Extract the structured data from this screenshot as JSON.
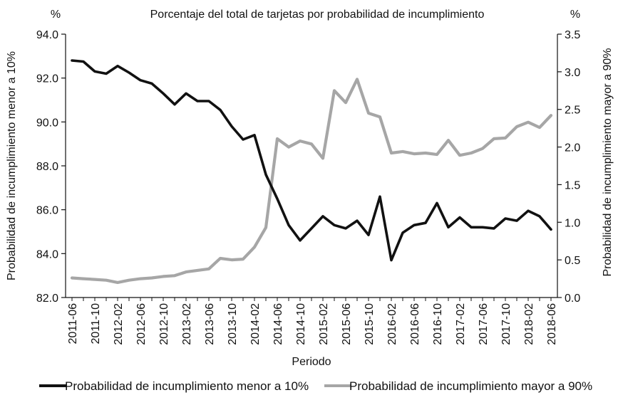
{
  "chart_data": {
    "type": "line",
    "title": "Porcentaje del total de tarjetas por probabilidad de incumplimiento",
    "xlabel": "Periodo",
    "ylabel_left": "Probabilidad de incumplimiento menor a 10%",
    "ylabel_right": "Probabilidad de incumplimiento mayor a 90%",
    "unit_left": "%",
    "unit_right": "%",
    "ylim_left": [
      82.0,
      94.0
    ],
    "ylim_right": [
      0.0,
      3.5
    ],
    "yticks_left": [
      "82.0",
      "84.0",
      "86.0",
      "88.0",
      "90.0",
      "92.0",
      "94.0"
    ],
    "yticks_right": [
      "0.0",
      "0.5",
      "1.0",
      "1.5",
      "2.0",
      "2.5",
      "3.0",
      "3.5"
    ],
    "x": [
      "2011-06",
      "2011-08",
      "2011-10",
      "2011-12",
      "2012-02",
      "2012-04",
      "2012-06",
      "2012-08",
      "2012-10",
      "2012-12",
      "2013-02",
      "2013-04",
      "2013-06",
      "2013-08",
      "2013-10",
      "2013-12",
      "2014-02",
      "2014-04",
      "2014-06",
      "2014-08",
      "2014-10",
      "2014-12",
      "2015-02",
      "2015-04",
      "2015-06",
      "2015-08",
      "2015-10",
      "2015-12",
      "2016-02",
      "2016-04",
      "2016-06",
      "2016-08",
      "2016-10",
      "2016-12",
      "2017-02",
      "2017-04",
      "2017-06",
      "2017-08",
      "2017-10",
      "2017-12",
      "2018-02",
      "2018-04",
      "2018-06"
    ],
    "xtick_labels": [
      "2011-06",
      "2011-10",
      "2012-02",
      "2012-06",
      "2012-10",
      "2013-02",
      "2013-06",
      "2013-10",
      "2014-02",
      "2014-06",
      "2014-10",
      "2015-02",
      "2015-06",
      "2015-10",
      "2016-02",
      "2016-06",
      "2016-10",
      "2017-02",
      "2017-06",
      "2017-10",
      "2018-02",
      "2018-06"
    ],
    "series": [
      {
        "name": "Probabilidad de incumplimiento menor a 10%",
        "axis": "left",
        "color": "#111111",
        "values": [
          92.8,
          92.75,
          92.3,
          92.2,
          92.55,
          92.25,
          91.9,
          91.75,
          91.3,
          90.8,
          91.3,
          90.95,
          90.95,
          90.55,
          89.8,
          89.2,
          89.4,
          87.6,
          86.5,
          85.3,
          84.6,
          85.15,
          85.7,
          85.3,
          85.15,
          85.5,
          84.85,
          86.6,
          83.7,
          84.95,
          85.3,
          85.4,
          86.3,
          85.2,
          85.65,
          85.2,
          85.2,
          85.15,
          85.6,
          85.5,
          85.95,
          85.7,
          85.1
        ]
      },
      {
        "name": "Probabilidad de incumplimiento mayor a 90%",
        "axis": "right",
        "color": "#a6a6a6",
        "values": [
          0.26,
          0.25,
          0.24,
          0.23,
          0.2,
          0.23,
          0.25,
          0.26,
          0.28,
          0.29,
          0.34,
          0.36,
          0.38,
          0.52,
          0.5,
          0.51,
          0.67,
          0.93,
          2.11,
          2.0,
          2.08,
          2.04,
          1.85,
          2.75,
          2.59,
          2.9,
          2.45,
          2.4,
          1.92,
          1.94,
          1.91,
          1.92,
          1.9,
          2.09,
          1.89,
          1.92,
          1.98,
          2.11,
          2.12,
          2.27,
          2.33,
          2.26,
          2.42
        ]
      }
    ],
    "legend_position": "bottom"
  }
}
